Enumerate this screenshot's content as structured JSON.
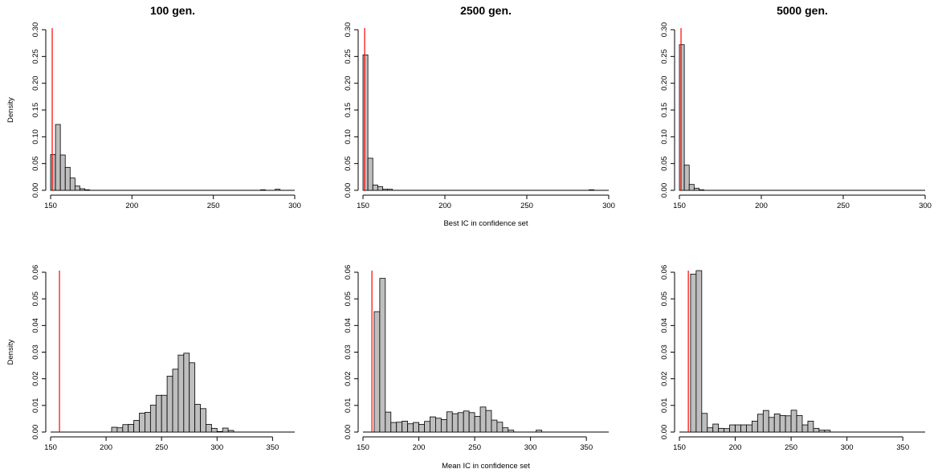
{
  "chart_data": [
    {
      "type": "histogram",
      "title": "100 gen.",
      "xlabel": "",
      "ylabel": "Density",
      "xticks": [
        150,
        200,
        250,
        300
      ],
      "yticks": [
        0.0,
        0.05,
        0.1,
        0.15,
        0.2,
        0.25,
        0.3
      ],
      "xlim": [
        150,
        300
      ],
      "ylim": [
        0,
        0.3
      ],
      "bin_width": 3,
      "bins": [
        [
          150,
          0.067
        ],
        [
          153,
          0.123
        ],
        [
          156,
          0.066
        ],
        [
          159,
          0.043
        ],
        [
          162,
          0.023
        ],
        [
          165,
          0.008
        ],
        [
          168,
          0.003
        ],
        [
          171,
          0.001
        ],
        [
          279,
          0.001
        ],
        [
          288,
          0.002
        ]
      ],
      "reference_line": 151
    },
    {
      "type": "histogram",
      "title": "2500 gen.",
      "xlabel": "Best IC in confidence set",
      "ylabel": "",
      "xticks": [
        150,
        200,
        250,
        300
      ],
      "yticks": [
        0.0,
        0.05,
        0.1,
        0.15,
        0.2,
        0.25,
        0.3
      ],
      "xlim": [
        150,
        300
      ],
      "ylim": [
        0,
        0.3
      ],
      "bin_width": 3,
      "bins": [
        [
          150,
          0.253
        ],
        [
          153,
          0.06
        ],
        [
          156,
          0.01
        ],
        [
          159,
          0.007
        ],
        [
          162,
          0.002
        ],
        [
          165,
          0.002
        ],
        [
          288,
          0.001
        ]
      ],
      "reference_line": 151
    },
    {
      "type": "histogram",
      "title": "5000 gen.",
      "xlabel": "",
      "ylabel": "",
      "xticks": [
        150,
        200,
        250,
        300
      ],
      "yticks": [
        0.0,
        0.05,
        0.1,
        0.15,
        0.2,
        0.25,
        0.3
      ],
      "xlim": [
        150,
        300
      ],
      "ylim": [
        0,
        0.3
      ],
      "bin_width": 3,
      "bins": [
        [
          150,
          0.272
        ],
        [
          153,
          0.047
        ],
        [
          156,
          0.011
        ],
        [
          159,
          0.004
        ],
        [
          162,
          0.001
        ]
      ],
      "reference_line": 151
    },
    {
      "type": "histogram",
      "title": "",
      "xlabel": "",
      "ylabel": "Density",
      "xticks": [
        150,
        200,
        250,
        300,
        350
      ],
      "yticks": [
        0.0,
        0.01,
        0.02,
        0.03,
        0.04,
        0.05,
        0.06
      ],
      "xlim": [
        150,
        370
      ],
      "ylim": [
        0,
        0.06
      ],
      "bin_width": 5,
      "bins": [
        [
          205,
          0.0018
        ],
        [
          210,
          0.0016
        ],
        [
          215,
          0.0028
        ],
        [
          220,
          0.0029
        ],
        [
          225,
          0.0044
        ],
        [
          230,
          0.0071
        ],
        [
          235,
          0.0074
        ],
        [
          240,
          0.0101
        ],
        [
          245,
          0.0138
        ],
        [
          250,
          0.0138
        ],
        [
          255,
          0.021
        ],
        [
          260,
          0.0236
        ],
        [
          265,
          0.0289
        ],
        [
          270,
          0.0296
        ],
        [
          275,
          0.026
        ],
        [
          280,
          0.0104
        ],
        [
          285,
          0.0088
        ],
        [
          290,
          0.0029
        ],
        [
          295,
          0.0014
        ],
        [
          300,
          0.0002
        ],
        [
          305,
          0.0015
        ],
        [
          310,
          0.0006
        ]
      ],
      "reference_line": 158
    },
    {
      "type": "histogram",
      "title": "",
      "xlabel": "Mean IC in confidence set",
      "ylabel": "",
      "xticks": [
        150,
        200,
        250,
        300,
        350
      ],
      "yticks": [
        0.0,
        0.01,
        0.02,
        0.03,
        0.04,
        0.05,
        0.06
      ],
      "xlim": [
        150,
        370
      ],
      "ylim": [
        0,
        0.06
      ],
      "bin_width": 5,
      "bins": [
        [
          160,
          0.0452
        ],
        [
          165,
          0.0577
        ],
        [
          170,
          0.0075
        ],
        [
          175,
          0.0036
        ],
        [
          180,
          0.0037
        ],
        [
          185,
          0.0041
        ],
        [
          190,
          0.0031
        ],
        [
          195,
          0.0036
        ],
        [
          200,
          0.0029
        ],
        [
          205,
          0.004
        ],
        [
          210,
          0.0057
        ],
        [
          215,
          0.0052
        ],
        [
          220,
          0.0047
        ],
        [
          225,
          0.0076
        ],
        [
          230,
          0.0069
        ],
        [
          235,
          0.0073
        ],
        [
          240,
          0.0079
        ],
        [
          245,
          0.0073
        ],
        [
          250,
          0.0059
        ],
        [
          255,
          0.0094
        ],
        [
          260,
          0.0081
        ],
        [
          265,
          0.0045
        ],
        [
          270,
          0.0037
        ],
        [
          275,
          0.0016
        ],
        [
          280,
          0.0007
        ],
        [
          305,
          0.0007
        ]
      ],
      "reference_line": 158
    },
    {
      "type": "histogram",
      "title": "",
      "xlabel": "",
      "ylabel": "",
      "xticks": [
        150,
        200,
        250,
        300,
        350
      ],
      "yticks": [
        0.0,
        0.01,
        0.02,
        0.03,
        0.04,
        0.05,
        0.06
      ],
      "xlim": [
        150,
        370
      ],
      "ylim": [
        0,
        0.06
      ],
      "bin_width": 5,
      "bins": [
        [
          160,
          0.0593
        ],
        [
          165,
          0.062
        ],
        [
          170,
          0.007
        ],
        [
          175,
          0.0016
        ],
        [
          180,
          0.003
        ],
        [
          185,
          0.0014
        ],
        [
          190,
          0.0013
        ],
        [
          195,
          0.0027
        ],
        [
          200,
          0.0027
        ],
        [
          205,
          0.0027
        ],
        [
          210,
          0.0027
        ],
        [
          215,
          0.0041
        ],
        [
          220,
          0.0067
        ],
        [
          225,
          0.0081
        ],
        [
          230,
          0.0055
        ],
        [
          235,
          0.0068
        ],
        [
          240,
          0.0062
        ],
        [
          245,
          0.0061
        ],
        [
          250,
          0.0082
        ],
        [
          255,
          0.0062
        ],
        [
          260,
          0.0027
        ],
        [
          265,
          0.0041
        ],
        [
          270,
          0.0014
        ],
        [
          275,
          0.0007
        ],
        [
          280,
          0.0007
        ]
      ],
      "reference_line": 158
    }
  ],
  "colors": {
    "bar_fill": "#bebebe",
    "bar_stroke": "#000000",
    "reference_line": "#ff0000",
    "axis": "#000000"
  }
}
